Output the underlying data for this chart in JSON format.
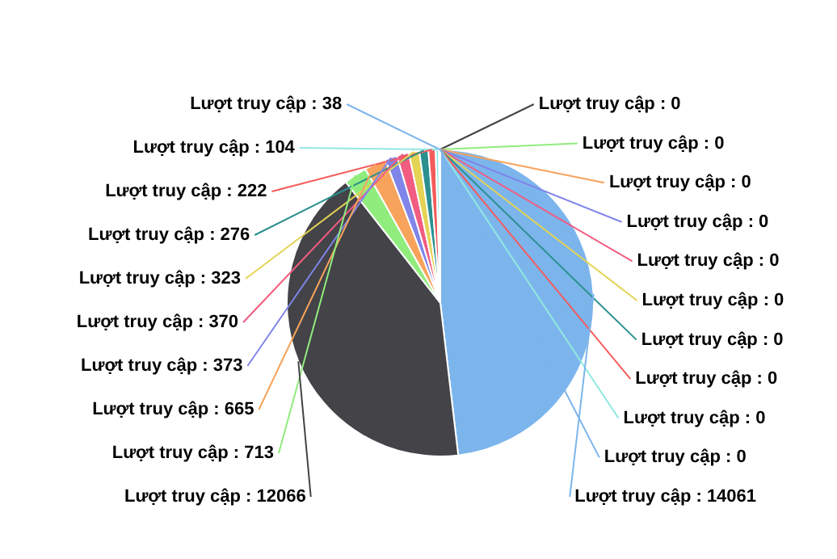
{
  "chart_data": {
    "type": "pie",
    "categories": [
      null,
      null,
      null,
      null,
      null,
      null,
      null,
      null,
      null,
      null,
      null,
      null,
      null,
      null,
      null,
      null,
      null,
      null,
      null,
      null,
      null
    ],
    "values": [
      14061,
      12066,
      713,
      665,
      373,
      370,
      323,
      276,
      222,
      104,
      38,
      0,
      0,
      0,
      0,
      0,
      0,
      0,
      0,
      0,
      0
    ],
    "value_labels": [
      "Lượt truy cập : 14061",
      "Lượt truy cập : 12066",
      "Lượt truy cập : 713",
      "Lượt truy cập : 665",
      "Lượt truy cập : 373",
      "Lượt truy cập : 370",
      "Lượt truy cập : 323",
      "Lượt truy cập : 276",
      "Lượt truy cập : 222",
      "Lượt truy cập : 104",
      "Lượt truy cập : 38",
      "Lượt truy cập : 0",
      "Lượt truy cập : 0",
      "Lượt truy cập : 0",
      "Lượt truy cập : 0",
      "Lượt truy cập : 0",
      "Lượt truy cập : 0",
      "Lượt truy cập : 0",
      "Lượt truy cập : 0",
      "Lượt truy cập : 0",
      "Lượt truy cập : 0"
    ],
    "colors": [
      "#7cb5ec",
      "#434348",
      "#90ed7d",
      "#f7a35c",
      "#8085e9",
      "#f15c80",
      "#e4d354",
      "#2b908f",
      "#f45b5b",
      "#91e8e1",
      "#7cb5ec",
      "#434348",
      "#90ed7d",
      "#f7a35c",
      "#8085e9",
      "#f15c80",
      "#e4d354",
      "#2b908f",
      "#f45b5b",
      "#91e8e1",
      "#7cb5ec"
    ]
  }
}
